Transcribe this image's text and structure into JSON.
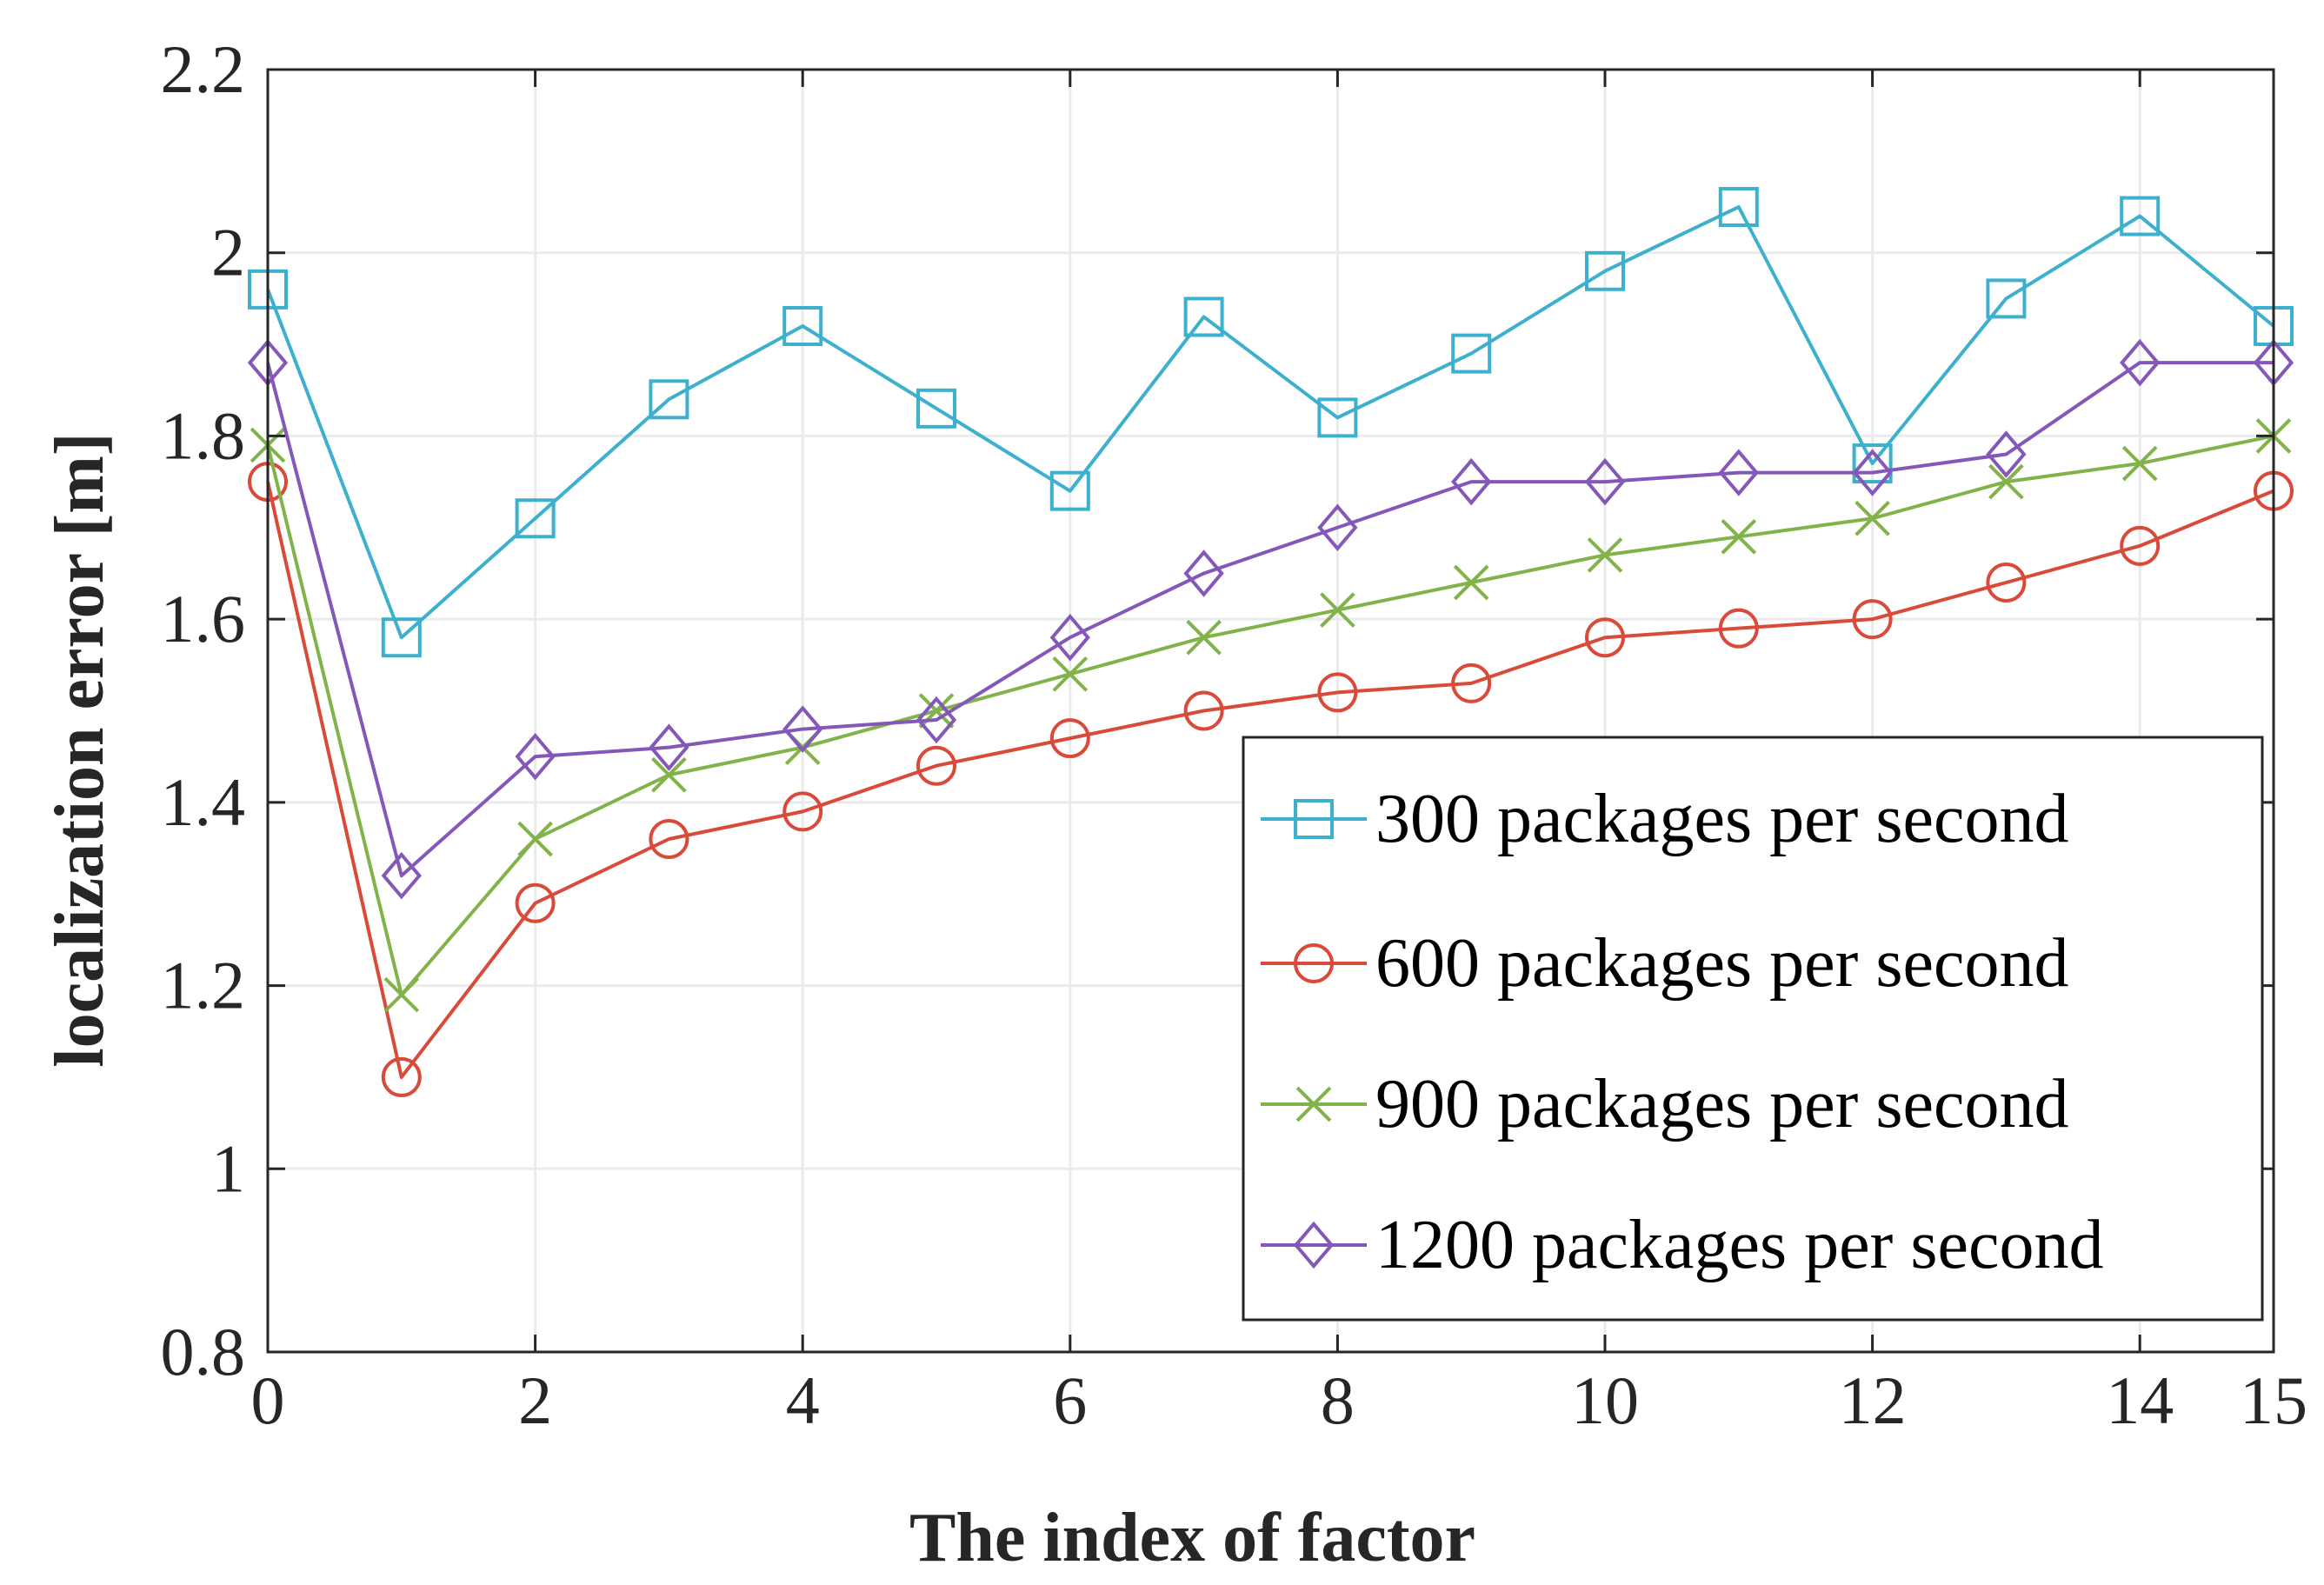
{
  "chart_data": {
    "type": "line",
    "title": "",
    "xlabel": "The index of factor",
    "ylabel": "localization error [m]",
    "xlim": [
      0,
      15
    ],
    "ylim": [
      0.8,
      2.2
    ],
    "xticks": [
      0,
      2,
      4,
      6,
      8,
      10,
      12,
      14,
      15
    ],
    "xtick_labels": [
      "0",
      "2",
      "4",
      "6",
      "8",
      "10",
      "12",
      "14",
      "15"
    ],
    "yticks": [
      0.8,
      1,
      1.2,
      1.4,
      1.6,
      1.8,
      2,
      2.2
    ],
    "ytick_labels": [
      "0.8",
      "1",
      "1.2",
      "1.4",
      "1.6",
      "1.8",
      "2",
      "2.2"
    ],
    "grid": true,
    "legend_position": "bottom-right",
    "x": [
      0,
      1,
      2,
      3,
      4,
      5,
      6,
      7,
      8,
      9,
      10,
      11,
      12,
      13,
      14,
      15
    ],
    "series": [
      {
        "name": "300 packages per second",
        "color": "#3DB0CE",
        "marker": "square",
        "values": [
          1.96,
          1.58,
          1.71,
          1.84,
          1.92,
          1.83,
          1.74,
          1.93,
          1.82,
          1.89,
          1.98,
          2.05,
          1.77,
          1.95,
          2.04,
          1.92
        ]
      },
      {
        "name": "600 packages per second",
        "color": "#D94A3A",
        "marker": "circle",
        "values": [
          1.75,
          1.1,
          1.29,
          1.36,
          1.39,
          1.44,
          1.47,
          1.5,
          1.52,
          1.53,
          1.58,
          1.59,
          1.6,
          1.64,
          1.68,
          1.74
        ]
      },
      {
        "name": "900 packages per second",
        "color": "#82B34A",
        "marker": "x",
        "values": [
          1.79,
          1.19,
          1.36,
          1.43,
          1.46,
          1.5,
          1.54,
          1.58,
          1.61,
          1.64,
          1.67,
          1.69,
          1.71,
          1.75,
          1.77,
          1.8
        ]
      },
      {
        "name": "1200 packages per second",
        "color": "#8358B8",
        "marker": "diamond",
        "values": [
          1.88,
          1.32,
          1.45,
          1.46,
          1.48,
          1.49,
          1.58,
          1.65,
          1.7,
          1.75,
          1.75,
          1.76,
          1.76,
          1.78,
          1.88,
          1.88
        ]
      }
    ]
  }
}
